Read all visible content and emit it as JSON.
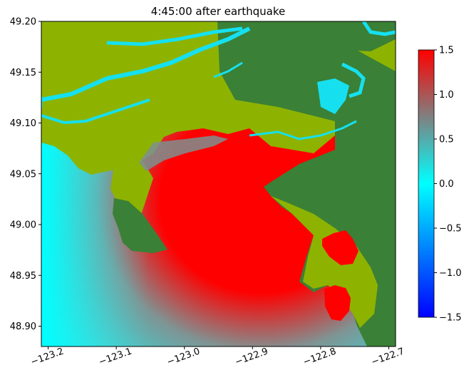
{
  "chart_data": {
    "type": "heatmap",
    "title": "4:45:00 after earthquake",
    "xlim": [
      -123.21,
      -122.69
    ],
    "ylim": [
      48.88,
      49.2
    ],
    "x_ticks": [
      -123.2,
      -123.1,
      -123.0,
      -122.9,
      -122.8,
      -122.7
    ],
    "x_tick_labels": [
      "−123.2",
      "−123.1",
      "−123.0",
      "−122.9",
      "−122.8",
      "−122.7"
    ],
    "y_ticks": [
      49.2,
      49.15,
      49.1,
      49.05,
      49.0,
      48.95,
      48.9
    ],
    "y_tick_labels": [
      "49.20",
      "49.15",
      "49.10",
      "49.05",
      "49.00",
      "48.95",
      "48.90"
    ],
    "colorbar": {
      "range": [
        -1.5,
        1.5
      ],
      "ticks": [
        1.5,
        1.0,
        0.5,
        0.0,
        -0.5,
        -1.0,
        -1.5
      ],
      "tick_labels": [
        "1.5",
        "1.0",
        "0.5",
        "0.0",
        "−0.5",
        "−1.0",
        "−1.5"
      ],
      "colors": [
        "#0000ff",
        "#00ffff",
        "#808080",
        "#ff0000"
      ]
    },
    "land_colors": {
      "lowland": "#8db300",
      "upland": "#3a8036"
    },
    "grid": false
  }
}
